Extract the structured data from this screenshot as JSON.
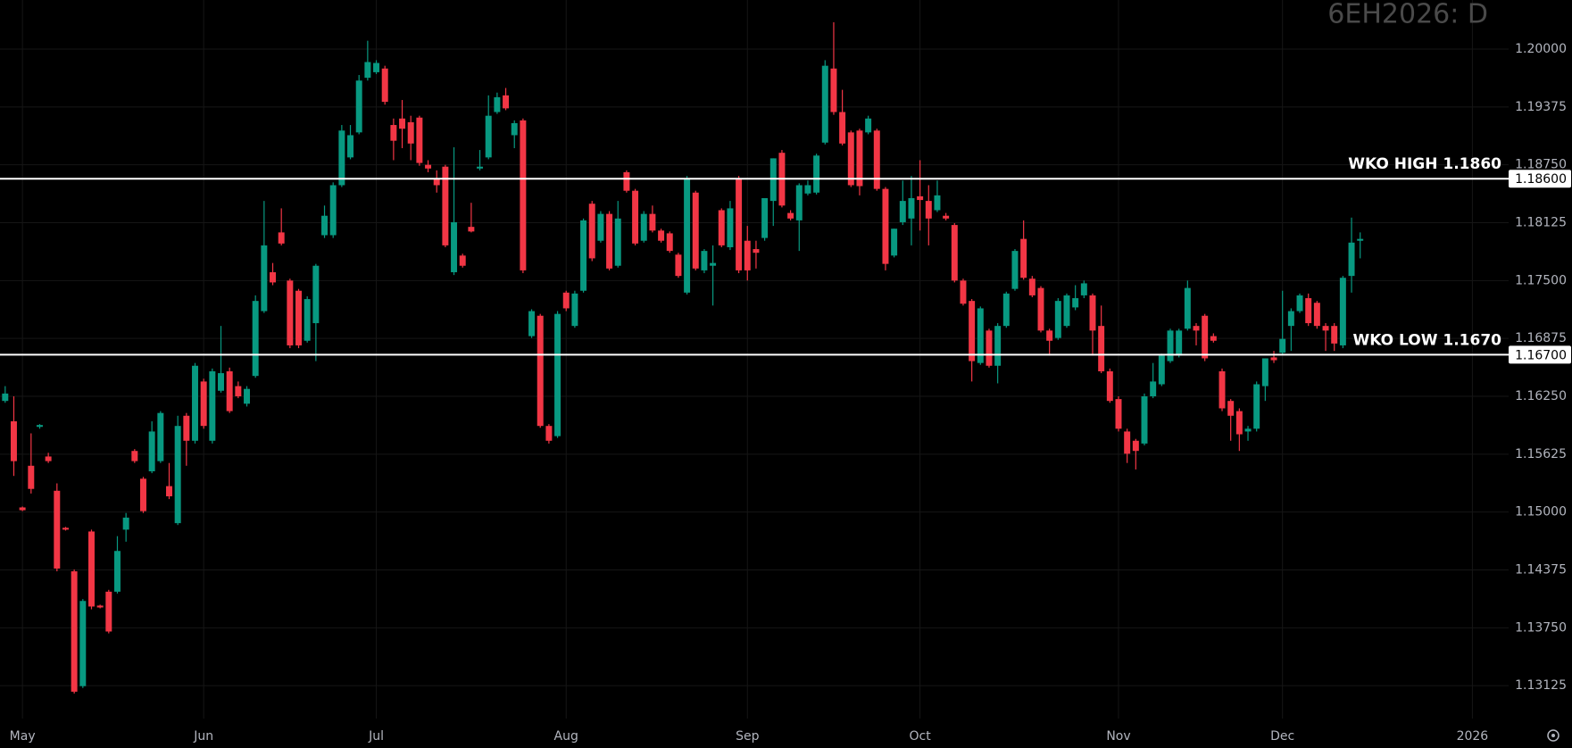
{
  "chart_data": {
    "type": "candlestick",
    "title": "6EH2026: D",
    "up_color": "#089981",
    "down_color": "#f23645",
    "xlim": [
      -0.6,
      174.2
    ],
    "xticks": [
      {
        "value": 2,
        "label": "May"
      },
      {
        "value": 23,
        "label": "Jun"
      },
      {
        "value": 43,
        "label": "Jul"
      },
      {
        "value": 65,
        "label": "Aug"
      },
      {
        "value": 86,
        "label": "Sep"
      },
      {
        "value": 106,
        "label": "Oct"
      },
      {
        "value": 129,
        "label": "Nov"
      },
      {
        "value": 148,
        "label": "Dec"
      },
      {
        "value": 170,
        "label": "2026"
      }
    ],
    "ylim": [
      1.1277,
      1.2053
    ],
    "yticks": [
      {
        "value": 1.13125,
        "label": "1.13125"
      },
      {
        "value": 1.1375,
        "label": "1.13750"
      },
      {
        "value": 1.14375,
        "label": "1.14375"
      },
      {
        "value": 1.15,
        "label": "1.15000"
      },
      {
        "value": 1.15625,
        "label": "1.15625"
      },
      {
        "value": 1.1625,
        "label": "1.16250"
      },
      {
        "value": 1.16875,
        "label": "1.16875"
      },
      {
        "value": 1.175,
        "label": "1.17500"
      },
      {
        "value": 1.18125,
        "label": "1.18125"
      },
      {
        "value": 1.1875,
        "label": "1.18750"
      },
      {
        "value": 1.19375,
        "label": "1.19375"
      },
      {
        "value": 1.2,
        "label": "1.20000"
      }
    ],
    "grid": true,
    "hlines": [
      {
        "value": 1.186,
        "label": "WKO HIGH 1.1860",
        "axis_label": "1.18600"
      },
      {
        "value": 1.167,
        "label": "WKO LOW 1.1670",
        "axis_label": "1.16700"
      }
    ],
    "open": [
      1.162,
      1.1598,
      1.1505,
      1.155,
      1.1592,
      1.156,
      1.1523,
      1.1483,
      1.1436,
      1.1312,
      1.1479,
      1.1399,
      1.1414,
      1.1414,
      1.1481,
      1.1566,
      1.1536,
      1.1544,
      1.1555,
      1.1528,
      1.1488,
      1.1604,
      1.1577,
      1.1641,
      1.1577,
      1.1631,
      1.1652,
      1.1636,
      1.1617,
      1.1647,
      1.1717,
      1.1759,
      1.1802,
      1.175,
      1.1739,
      1.1685,
      1.1704,
      1.1799,
      1.1799,
      1.1853,
      1.1883,
      1.191,
      1.1969,
      1.1975,
      1.1979,
      1.1918,
      1.1925,
      1.1921,
      1.1926,
      1.1875,
      1.186,
      1.1873,
      1.1759,
      1.1777,
      1.1808,
      1.1871,
      1.1883,
      1.1932,
      1.195,
      1.1907,
      1.1923,
      1.169,
      1.1712,
      1.1593,
      1.1582,
      1.1737,
      1.1701,
      1.1739,
      1.1833,
      1.1793,
      1.1822,
      1.1766,
      1.1867,
      1.1847,
      1.1793,
      1.1822,
      1.1804,
      1.1801,
      1.1778,
      1.1737,
      1.1845,
      1.1761,
      1.1766,
      1.1826,
      1.1786,
      1.186,
      1.1793,
      1.1784,
      1.1796,
      1.1836,
      1.1888,
      1.1823,
      1.1815,
      1.1844,
      1.1845,
      1.1899,
      1.1979,
      1.1932,
      1.191,
      1.1912,
      1.191,
      1.1912,
      1.1849,
      1.1777,
      1.1813,
      1.1817,
      1.1841,
      1.1836,
      1.1826,
      1.182,
      1.181,
      1.175,
      1.1728,
      1.1661,
      1.1696,
      1.1658,
      1.1701,
      1.1741,
      1.1795,
      1.1752,
      1.1742,
      1.1696,
      1.1688,
      1.1701,
      1.1721,
      1.1734,
      1.1734,
      1.1701,
      1.1652,
      1.1622,
      1.1587,
      1.1577,
      1.1574,
      1.1625,
      1.1638,
      1.1663,
      1.1669,
      1.1698,
      1.1701,
      1.1712,
      1.169,
      1.1652,
      1.162,
      1.1609,
      1.1587,
      1.159,
      1.1636,
      1.1667,
      1.1672,
      1.1701,
      1.1717,
      1.1731,
      1.1726,
      1.1701,
      1.1701,
      1.168,
      1.1755,
      1.1793
    ],
    "high": [
      1.1636,
      1.1625,
      1.1506,
      1.1585,
      1.1595,
      1.1564,
      1.1531,
      1.1484,
      1.1438,
      1.1406,
      1.1481,
      1.14,
      1.1416,
      1.1474,
      1.1499,
      1.1568,
      1.1538,
      1.1598,
      1.1609,
      1.1553,
      1.1604,
      1.1607,
      1.1661,
      1.1644,
      1.1655,
      1.1701,
      1.1656,
      1.1641,
      1.1636,
      1.1734,
      1.1836,
      1.1769,
      1.1828,
      1.1752,
      1.1741,
      1.1733,
      1.1768,
      1.1831,
      1.1856,
      1.1918,
      1.1918,
      1.1972,
      1.2009,
      1.1988,
      1.1982,
      1.1925,
      1.1945,
      1.1928,
      1.1928,
      1.188,
      1.1869,
      1.1875,
      1.1894,
      1.1779,
      1.1834,
      1.1891,
      1.195,
      1.1953,
      1.1958,
      1.1923,
      1.1925,
      1.1719,
      1.1714,
      1.1595,
      1.1717,
      1.1739,
      1.1739,
      1.1817,
      1.1836,
      1.1825,
      1.1825,
      1.1836,
      1.1869,
      1.1849,
      1.1825,
      1.1831,
      1.1806,
      1.1803,
      1.178,
      1.1863,
      1.1847,
      1.1784,
      1.1788,
      1.1828,
      1.1836,
      1.1863,
      1.1809,
      1.1793,
      1.1839,
      1.1882,
      1.1891,
      1.1826,
      1.1855,
      1.1858,
      1.1887,
      1.1988,
      1.2029,
      1.1956,
      1.1912,
      1.1914,
      1.1928,
      1.1914,
      1.1851,
      1.1806,
      1.1858,
      1.1863,
      1.188,
      1.1853,
      1.1858,
      1.1823,
      1.1812,
      1.1752,
      1.173,
      1.1722,
      1.1698,
      1.1704,
      1.1738,
      1.1784,
      1.1815,
      1.1755,
      1.1744,
      1.1698,
      1.1731,
      1.1736,
      1.1745,
      1.175,
      1.1736,
      1.1723,
      1.1655,
      1.1625,
      1.159,
      1.1579,
      1.1628,
      1.1661,
      1.1671,
      1.1698,
      1.1698,
      1.175,
      1.1704,
      1.1714,
      1.1693,
      1.1655,
      1.1622,
      1.1612,
      1.1593,
      1.1641,
      1.1666,
      1.1674,
      1.1739,
      1.172,
      1.1736,
      1.1736,
      1.1728,
      1.1704,
      1.1704,
      1.1755,
      1.1818,
      1.1802
    ],
    "low": [
      1.1618,
      1.1539,
      1.1501,
      1.152,
      1.159,
      1.1553,
      1.1436,
      1.148,
      1.1304,
      1.131,
      1.1395,
      1.1396,
      1.1369,
      1.1412,
      1.1468,
      1.1553,
      1.1499,
      1.1542,
      1.1553,
      1.1514,
      1.1486,
      1.155,
      1.1574,
      1.159,
      1.1574,
      1.1629,
      1.1607,
      1.1623,
      1.1614,
      1.1645,
      1.1715,
      1.1745,
      1.1788,
      1.1677,
      1.1677,
      1.1683,
      1.1663,
      1.1796,
      1.1796,
      1.1851,
      1.1881,
      1.1908,
      1.1966,
      1.1973,
      1.194,
      1.188,
      1.1893,
      1.188,
      1.1874,
      1.1867,
      1.1845,
      1.1786,
      1.1756,
      1.1764,
      1.1802,
      1.1869,
      1.1881,
      1.193,
      1.1934,
      1.1893,
      1.1758,
      1.1688,
      1.1591,
      1.1574,
      1.158,
      1.1717,
      1.1699,
      1.1737,
      1.1771,
      1.1791,
      1.1761,
      1.1764,
      1.1845,
      1.1788,
      1.1791,
      1.1802,
      1.1791,
      1.178,
      1.1753,
      1.1735,
      1.1761,
      1.1758,
      1.1723,
      1.1786,
      1.1783,
      1.1758,
      1.175,
      1.1763,
      1.1793,
      1.1809,
      1.1829,
      1.1815,
      1.1782,
      1.1842,
      1.1843,
      1.1897,
      1.1929,
      1.1896,
      1.1851,
      1.1842,
      1.1908,
      1.1847,
      1.1761,
      1.1775,
      1.181,
      1.1788,
      1.1804,
      1.1788,
      1.1824,
      1.1815,
      1.1748,
      1.1723,
      1.1641,
      1.1659,
      1.1656,
      1.1639,
      1.1699,
      1.1739,
      1.1751,
      1.1732,
      1.1694,
      1.1669,
      1.1686,
      1.1699,
      1.1718,
      1.1731,
      1.1669,
      1.165,
      1.1618,
      1.1587,
      1.1553,
      1.1546,
      1.1572,
      1.1623,
      1.1636,
      1.1661,
      1.1667,
      1.1696,
      1.168,
      1.1663,
      1.1683,
      1.1609,
      1.1577,
      1.1566,
      1.1577,
      1.1587,
      1.162,
      1.1661,
      1.167,
      1.1674,
      1.1715,
      1.1701,
      1.1698,
      1.1674,
      1.1674,
      1.1677,
      1.1737,
      1.1774
    ],
    "close": [
      1.1628,
      1.1555,
      1.1502,
      1.1525,
      1.1594,
      1.1555,
      1.1439,
      1.1481,
      1.1306,
      1.1404,
      1.1398,
      1.1397,
      1.1371,
      1.1458,
      1.1494,
      1.1555,
      1.1501,
      1.1587,
      1.1607,
      1.1517,
      1.1593,
      1.1577,
      1.1658,
      1.1593,
      1.1652,
      1.165,
      1.1609,
      1.1625,
      1.1633,
      1.1728,
      1.1788,
      1.1748,
      1.179,
      1.168,
      1.168,
      1.173,
      1.1766,
      1.182,
      1.1853,
      1.1912,
      1.1907,
      1.1966,
      1.1986,
      1.1985,
      1.1943,
      1.1901,
      1.1914,
      1.1898,
      1.1877,
      1.1871,
      1.1853,
      1.1788,
      1.1813,
      1.1766,
      1.1803,
      1.1873,
      1.1928,
      1.1948,
      1.1936,
      1.192,
      1.1761,
      1.1717,
      1.1593,
      1.1577,
      1.1714,
      1.172,
      1.1736,
      1.1815,
      1.1774,
      1.1822,
      1.1763,
      1.1817,
      1.1847,
      1.179,
      1.1822,
      1.1804,
      1.1793,
      1.1782,
      1.1755,
      1.186,
      1.1763,
      1.1782,
      1.1769,
      1.1788,
      1.1828,
      1.1761,
      1.1761,
      1.178,
      1.1839,
      1.1882,
      1.1831,
      1.1817,
      1.1853,
      1.1853,
      1.1885,
      1.1982,
      1.1932,
      1.1898,
      1.1853,
      1.1852,
      1.1925,
      1.1849,
      1.1768,
      1.1806,
      1.1836,
      1.1839,
      1.1837,
      1.1817,
      1.1842,
      1.1817,
      1.175,
      1.1725,
      1.1663,
      1.172,
      1.1658,
      1.1701,
      1.1736,
      1.1782,
      1.1753,
      1.1734,
      1.1696,
      1.1685,
      1.1728,
      1.1734,
      1.1731,
      1.1747,
      1.1696,
      1.1652,
      1.162,
      1.159,
      1.1563,
      1.1566,
      1.1625,
      1.1641,
      1.1669,
      1.1696,
      1.1696,
      1.1742,
      1.1696,
      1.1666,
      1.1685,
      1.1612,
      1.1604,
      1.1584,
      1.159,
      1.1638,
      1.1666,
      1.1664,
      1.1687,
      1.1717,
      1.1734,
      1.1704,
      1.1701,
      1.1696,
      1.1682,
      1.1753,
      1.1791,
      1.1795
    ]
  }
}
